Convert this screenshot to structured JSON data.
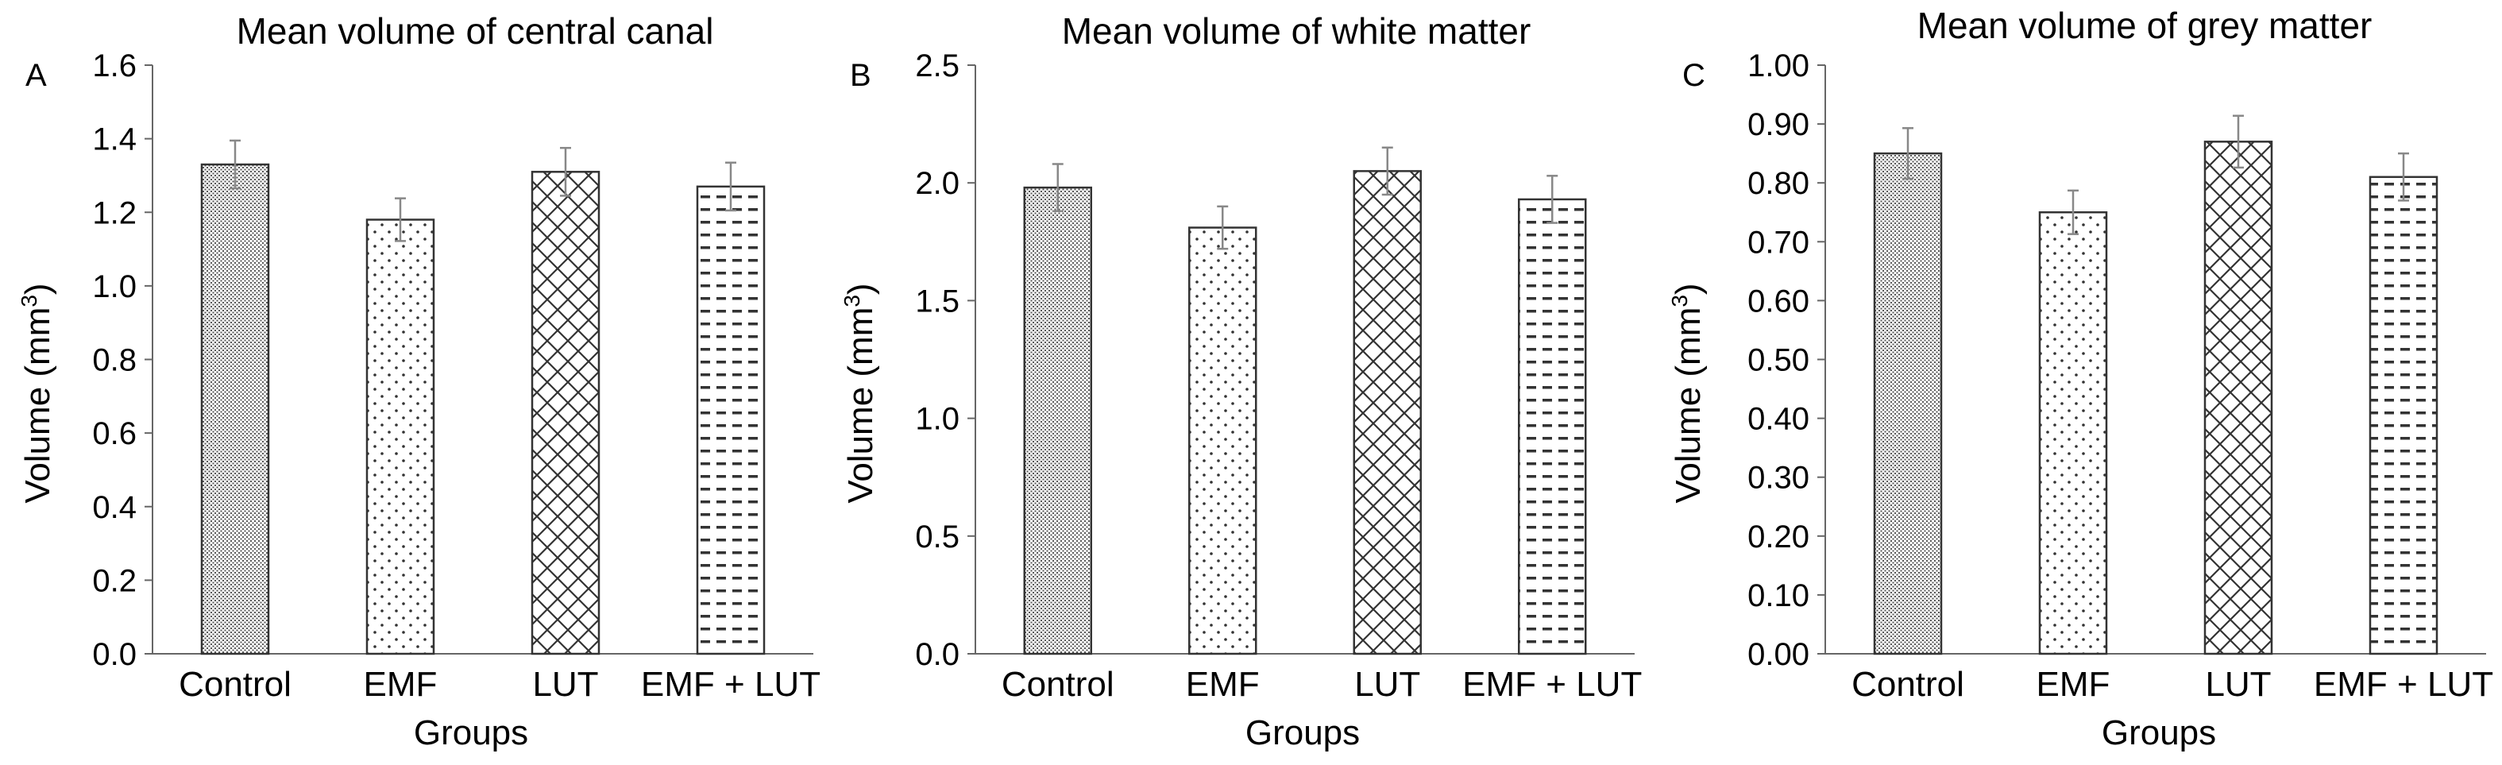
{
  "chart_data": [
    {
      "type": "bar",
      "panel": "A",
      "title": "Mean volume of central canal",
      "xlabel": "Groups",
      "ylabel": "Volume (mm",
      "ylabel_sup": "3",
      "ylabel_close": ")",
      "categories": [
        "Control",
        "EMF",
        "LUT",
        "EMF + LUT"
      ],
      "values": [
        1.33,
        1.18,
        1.31,
        1.27
      ],
      "errors": [
        0.065,
        0.058,
        0.065,
        0.065
      ],
      "ylim": [
        0,
        1.6
      ],
      "yticks": [
        "0.0",
        "0.2",
        "0.4",
        "0.6",
        "0.8",
        "1.0",
        "1.2",
        "1.4",
        "1.6"
      ],
      "grid": false
    },
    {
      "type": "bar",
      "panel": "B",
      "title": "Mean volume of white matter",
      "xlabel": "Groups",
      "ylabel": "Volume (mm",
      "ylabel_sup": "3",
      "ylabel_close": ")",
      "categories": [
        "Control",
        "EMF",
        "LUT",
        "EMF + LUT"
      ],
      "values": [
        1.98,
        1.81,
        2.05,
        1.93
      ],
      "errors": [
        0.1,
        0.09,
        0.1,
        0.1
      ],
      "ylim": [
        0,
        2.5
      ],
      "yticks": [
        "0.0",
        "0.5",
        "1.0",
        "1.5",
        "2.0",
        "2.5"
      ],
      "grid": false
    },
    {
      "type": "bar",
      "panel": "C",
      "title": "Mean volume of grey matter",
      "xlabel": "Groups",
      "ylabel": "Volume (mm",
      "ylabel_sup": "3",
      "ylabel_close": ")",
      "categories": [
        "Control",
        "EMF",
        "LUT",
        "EMF + LUT"
      ],
      "values": [
        0.85,
        0.75,
        0.87,
        0.81
      ],
      "errors": [
        0.043,
        0.037,
        0.044,
        0.04
      ],
      "ylim": [
        0,
        1.0
      ],
      "yticks": [
        "0.00",
        "0.10",
        "0.20",
        "0.30",
        "0.40",
        "0.50",
        "0.60",
        "0.70",
        "0.80",
        "0.90",
        "1.00"
      ],
      "grid": false
    }
  ],
  "colors": {
    "bar_edge": "#333333",
    "error_bar": "#888888",
    "axis": "#666666",
    "background": "#ffffff"
  },
  "patterns": [
    "dense-dots",
    "sparse-dots",
    "crosshatch",
    "dashed-lines"
  ]
}
